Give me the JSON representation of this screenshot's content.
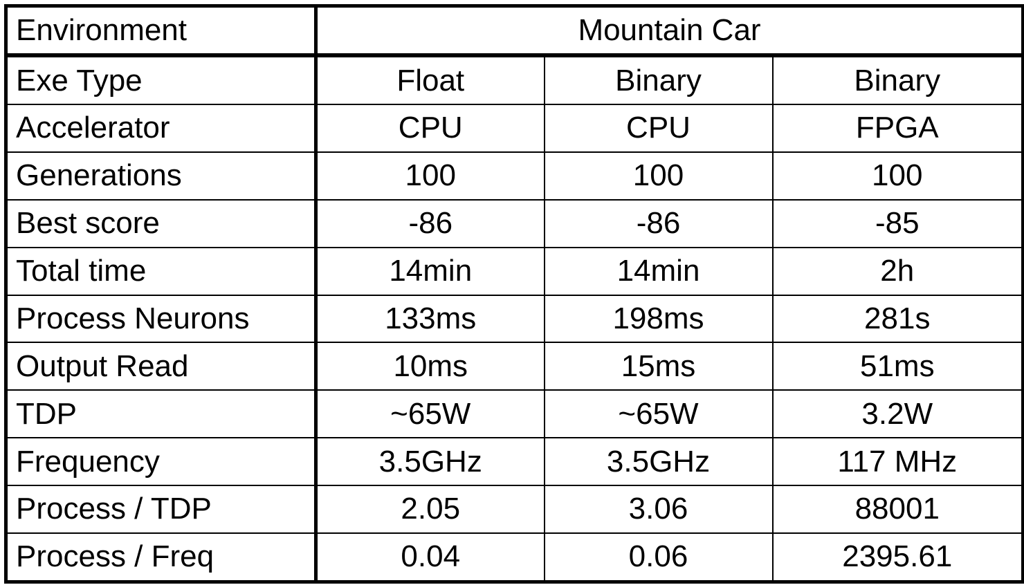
{
  "table": {
    "header": {
      "label": "Environment",
      "group": "Mountain Car"
    },
    "rows": [
      {
        "label": "Exe Type",
        "values": [
          "Float",
          "Binary",
          "Binary"
        ]
      },
      {
        "label": "Accelerator",
        "values": [
          "CPU",
          "CPU",
          "FPGA"
        ]
      },
      {
        "label": "Generations",
        "values": [
          "100",
          "100",
          "100"
        ]
      },
      {
        "label": "Best score",
        "values": [
          "-86",
          "-86",
          "-85"
        ]
      },
      {
        "label": "Total time",
        "values": [
          "14min",
          "14min",
          "2h"
        ]
      },
      {
        "label": "Process Neurons",
        "values": [
          "133ms",
          "198ms",
          "281s"
        ]
      },
      {
        "label": "Output Read",
        "values": [
          "10ms",
          "15ms",
          "51ms"
        ]
      },
      {
        "label": "TDP",
        "values": [
          "~65W",
          "~65W",
          "3.2W"
        ]
      },
      {
        "label": "Frequency",
        "values": [
          "3.5GHz",
          "3.5GHz",
          "117 MHz"
        ]
      },
      {
        "label": "Process / TDP",
        "values": [
          "2.05",
          "3.06",
          "88001"
        ]
      },
      {
        "label": "Process / Freq",
        "values": [
          "0.04",
          "0.06",
          "2395.61"
        ]
      }
    ]
  }
}
